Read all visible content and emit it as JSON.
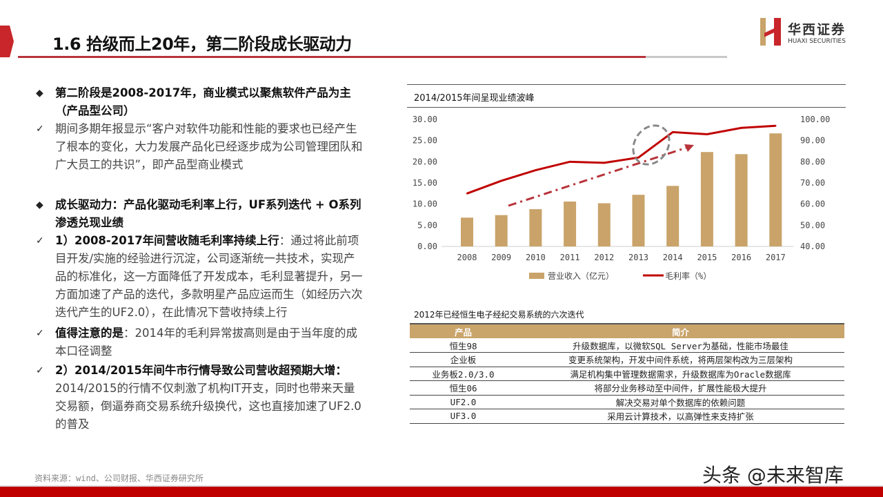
{
  "header": {
    "title": "1.6 拾级而上20年，第二阶段成长驱动力",
    "logo_cn": "华西证券",
    "logo_en": "HUAXI SECURITIES"
  },
  "left": {
    "s1_heading": "第二阶段是2008-2017年，商业模式以聚焦软件产品为主（产品型公司）",
    "s1_point": "期间多期年报显示“客户对软件功能和性能的要求也已经产生了根本的变化，大力发展产品化已经逐步成为公司管理团队和广大员工的共识”，即产品型商业模式",
    "s2_heading": "成长驱动力：产品化驱动毛利率上行，UF系列迭代 + O系列渗透兑现业绩",
    "p1_bold": "1）2008-2017年间营收随毛利率持续上行",
    "p1_text": "：通过将此前项目开发/实施的经验进行沉淀，公司逐渐统一共技术，实现产品的标准化，这一方面降低了开发成本，毛利显著提升，另一方面加速了产品的迭代，多款明星产品应运而生（如经历六次迭代产生的UF2.0），在此情况下营收持续上行",
    "p2_bold": "值得注意的是",
    "p2_text": "：2014年的毛利异常拔高则是由于当年度的成本口径调整",
    "p3_bold": "2）2014/2015年间牛市行情导致公司营收超预期大增：",
    "p3_text": "2014/2015的行情不仅刺激了机构IT开支，同时也带来天量交易额，倒逼券商交易系统升级换代，这也直接加速了UF2.0的普及"
  },
  "source": "资料来源：wind、公司财报、华西证券研究所",
  "watermark": "头条 @未来智库",
  "chart_data": {
    "type": "bar+line",
    "title": "2014/2015年间呈现业绩波峰",
    "categories": [
      "2008",
      "2009",
      "2010",
      "2011",
      "2012",
      "2013",
      "2014",
      "2015",
      "2016",
      "2017"
    ],
    "series": [
      {
        "name": "营业收入（亿元）",
        "type": "bar",
        "axis": "left",
        "color": "#c9a36a",
        "values": [
          6.8,
          7.4,
          8.8,
          10.6,
          10.2,
          12.2,
          14.3,
          22.3,
          21.8,
          26.7
        ]
      },
      {
        "name": "毛利率（%）",
        "type": "line",
        "axis": "right",
        "color": "#c00000",
        "values": [
          65,
          71,
          76,
          80,
          79.5,
          82,
          94,
          93,
          96,
          97
        ]
      }
    ],
    "ylim_left": [
      0,
      30
    ],
    "yticks_left": [
      "0.00",
      "5.00",
      "10.00",
      "15.00",
      "20.00",
      "25.00",
      "30.00"
    ],
    "ylim_right": [
      40,
      100
    ],
    "yticks_right": [
      "40.00",
      "50.00",
      "60.00",
      "70.00",
      "80.00",
      "90.00",
      "100.00"
    ],
    "legend": "bottom",
    "grid": false
  },
  "table": {
    "title": "2012年已经恒生电子经纪交易系统的六次迭代",
    "headers": [
      "产品",
      "简介"
    ],
    "rows": [
      [
        "恒生98",
        "升级数据库，以微软SQL Server为基础，性能市场最佳"
      ],
      [
        "企业板",
        "变更系统架构，开发中间件系统，将两层架构改为三层架构"
      ],
      [
        "业务板2.0/3.0",
        "满足机构集中管理数据需求，升级数据库为Oracle数据库"
      ],
      [
        "恒生06",
        "将部分业务移动至中间件，扩展性能极大提升"
      ],
      [
        "UF2.0",
        "解决交易对单个数据库的依赖问题"
      ],
      [
        "UF3.0",
        "采用云计算技术，以高弹性来支持扩张"
      ]
    ]
  }
}
